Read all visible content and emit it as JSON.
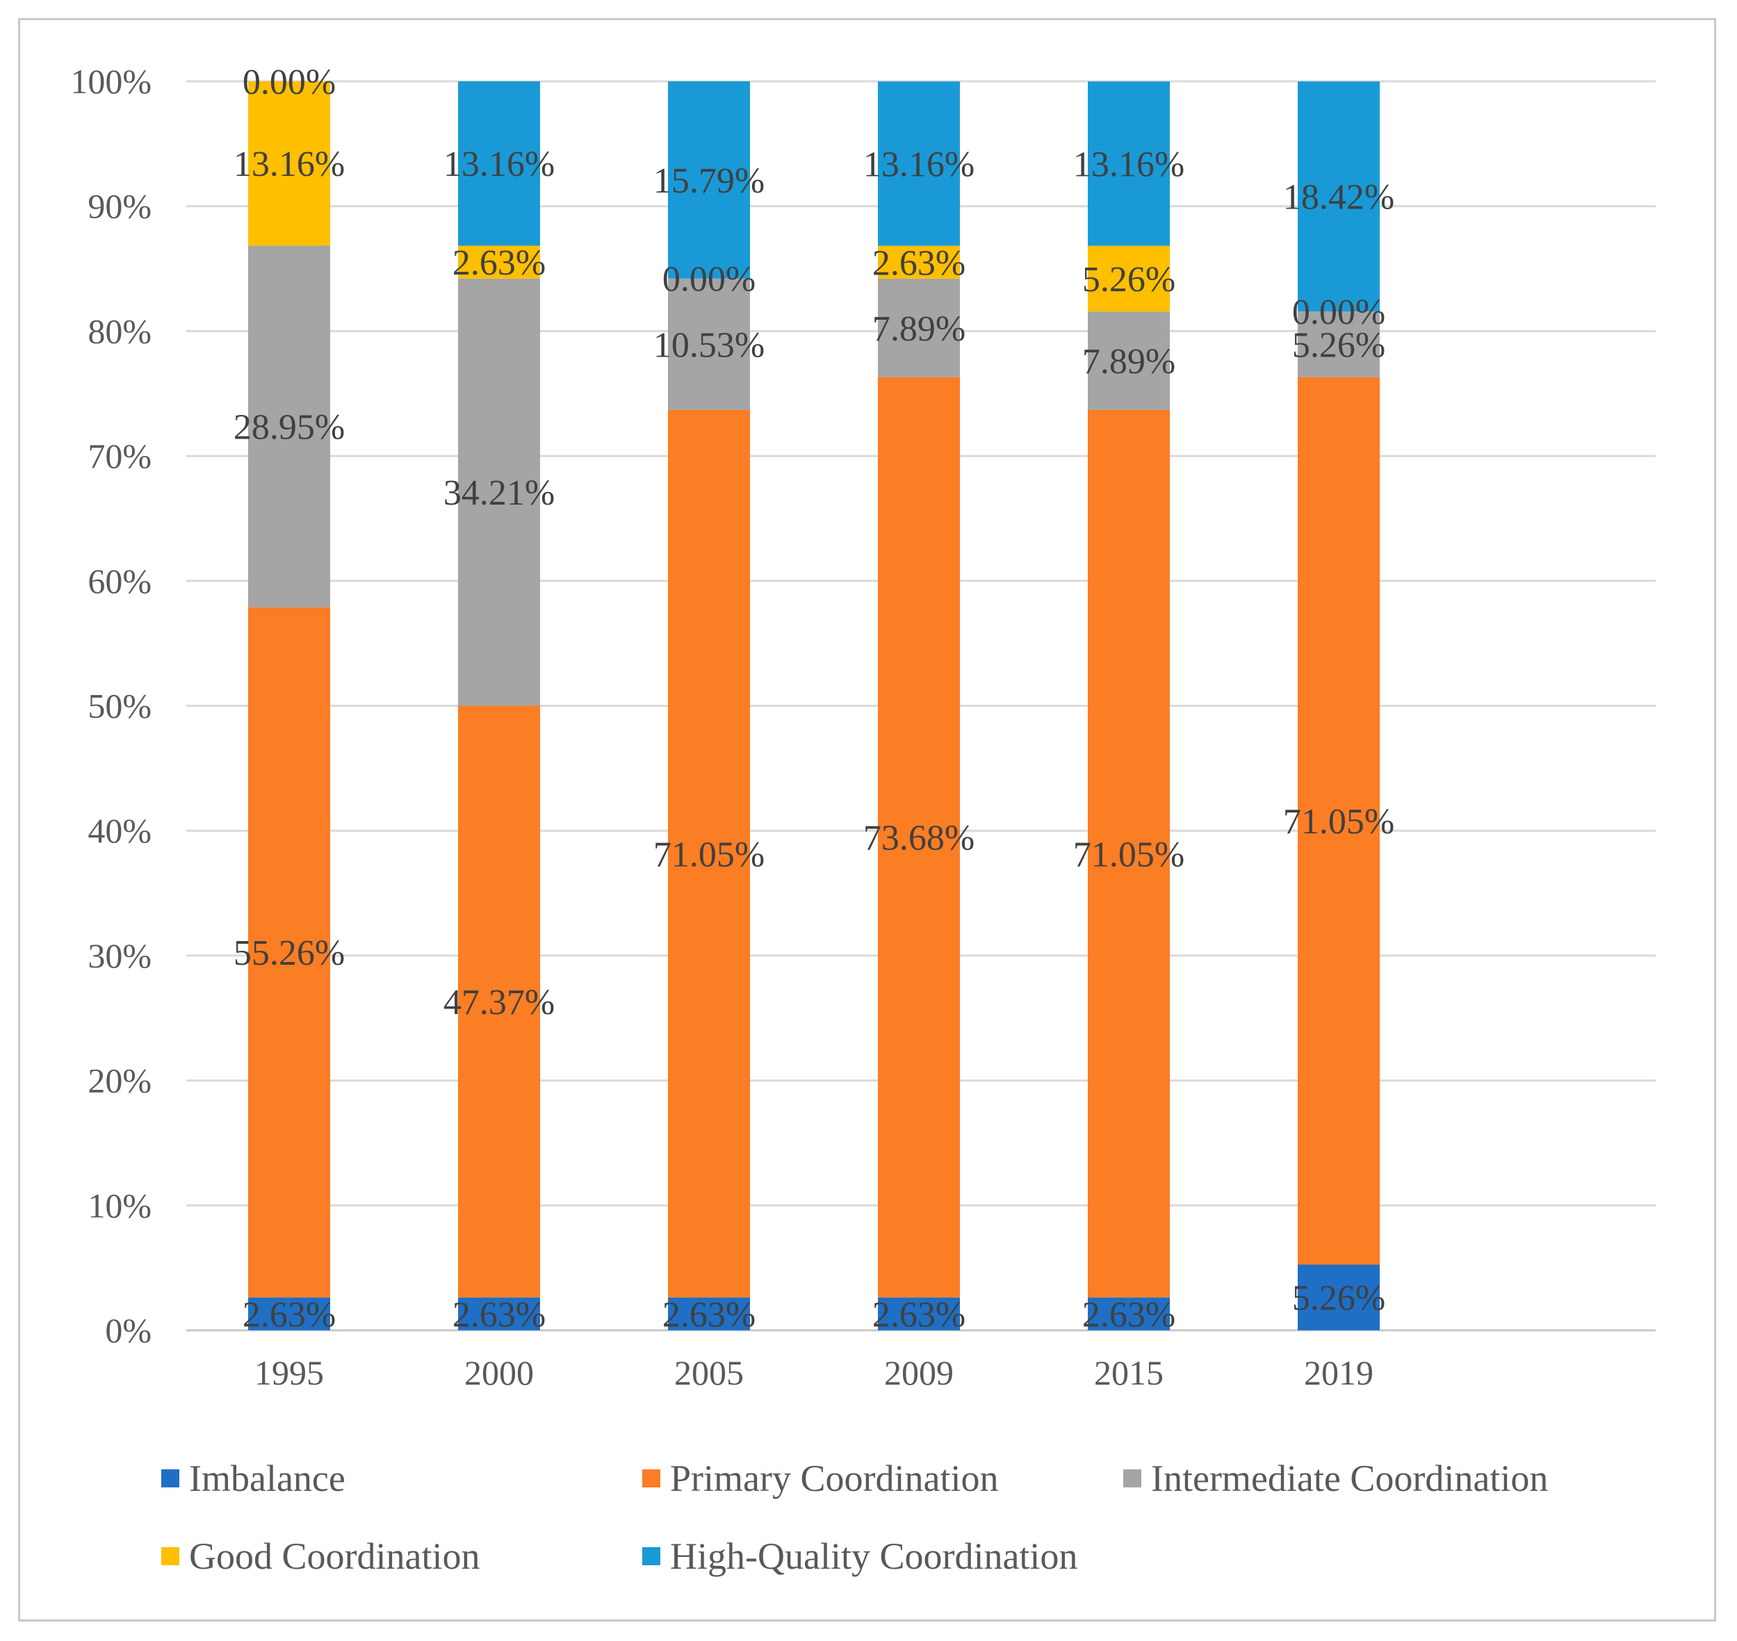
{
  "chart_data": {
    "type": "bar",
    "stacked": true,
    "percent": true,
    "title": "",
    "xlabel": "",
    "ylabel": "",
    "ylim": [
      0,
      100
    ],
    "yticks": [
      "0%",
      "10%",
      "20%",
      "30%",
      "40%",
      "50%",
      "60%",
      "70%",
      "80%",
      "90%",
      "100%"
    ],
    "grid": true,
    "legend_position": "bottom",
    "categories": [
      "1995",
      "2000",
      "2005",
      "2009",
      "2015",
      "2019"
    ],
    "series": [
      {
        "name": "Imbalance",
        "color": "#1f6fc5",
        "values": [
          2.63,
          2.63,
          2.63,
          2.63,
          2.63,
          5.26
        ],
        "labels": [
          "2.63%",
          "2.63%",
          "2.63%",
          "2.63%",
          "2.63%",
          "5.26%"
        ]
      },
      {
        "name": "Primary Coordination",
        "color": "#fb7d24",
        "values": [
          55.26,
          47.37,
          71.05,
          73.68,
          71.05,
          71.05
        ],
        "labels": [
          "55.26%",
          "47.37%",
          "71.05%",
          "73.68%",
          "71.05%",
          "71.05%"
        ]
      },
      {
        "name": "Intermediate Coordination",
        "color": "#a5a5a5",
        "values": [
          28.95,
          34.21,
          10.53,
          7.89,
          7.89,
          5.26
        ],
        "labels": [
          "28.95%",
          "34.21%",
          "10.53%",
          "7.89%",
          "7.89%",
          "5.26%"
        ]
      },
      {
        "name": "Good Coordination",
        "color": "#fdbf00",
        "values": [
          13.16,
          2.63,
          0.0,
          2.63,
          5.26,
          0.0
        ],
        "labels": [
          "13.16%",
          "2.63%",
          "0.00%",
          "2.63%",
          "5.26%",
          "0.00%"
        ]
      },
      {
        "name": "High-Quality Coordination",
        "color": "#199ad6",
        "values": [
          0.0,
          13.16,
          15.79,
          13.16,
          13.16,
          18.42
        ],
        "labels": [
          "0.00%",
          "13.16%",
          "15.79%",
          "13.16%",
          "13.16%",
          "18.42%"
        ]
      }
    ]
  }
}
